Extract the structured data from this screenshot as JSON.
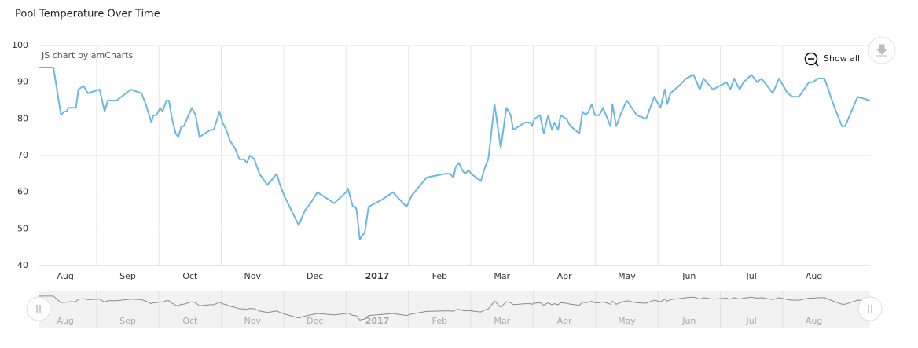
{
  "chart_data": {
    "type": "line",
    "title": "Pool Temperature Over Time",
    "credit": "JS chart by amCharts",
    "zoom_button": "Show all",
    "color": "#6bb9dc",
    "grid": true,
    "ylim": [
      40,
      100
    ],
    "yticks": [
      40,
      50,
      60,
      70,
      80,
      90,
      100
    ],
    "xlim": [
      0.07,
      13.4
    ],
    "xticks": [
      {
        "value": 0,
        "label": "Aug"
      },
      {
        "value": 1,
        "label": "Sep"
      },
      {
        "value": 2,
        "label": "Oct"
      },
      {
        "value": 3,
        "label": "Nov"
      },
      {
        "value": 4,
        "label": "Dec"
      },
      {
        "value": 5,
        "label": "2017"
      },
      {
        "value": 6,
        "label": "Feb"
      },
      {
        "value": 7,
        "label": "Mar"
      },
      {
        "value": 8,
        "label": "Apr"
      },
      {
        "value": 9,
        "label": "May"
      },
      {
        "value": 10,
        "label": "Jun"
      },
      {
        "value": 11,
        "label": "Jul"
      },
      {
        "value": 12,
        "label": "Aug"
      }
    ],
    "x": [
      0.07,
      0.31,
      0.43,
      0.48,
      0.52,
      0.55,
      0.67,
      0.71,
      0.79,
      0.86,
      1.05,
      1.13,
      1.18,
      1.32,
      1.55,
      1.72,
      1.79,
      1.88,
      1.91,
      1.96,
      2.02,
      2.06,
      2.12,
      2.16,
      2.21,
      2.27,
      2.31,
      2.36,
      2.4,
      2.45,
      2.53,
      2.59,
      2.65,
      2.73,
      2.83,
      2.88,
      2.97,
      3.02,
      3.08,
      3.14,
      3.22,
      3.29,
      3.36,
      3.41,
      3.46,
      3.53,
      3.61,
      3.74,
      3.89,
      3.94,
      4.01,
      4.24,
      4.34,
      4.43,
      4.54,
      4.81,
      5.0,
      5.03,
      5.11,
      5.15,
      5.17,
      5.22,
      5.25,
      5.3,
      5.36,
      5.58,
      5.75,
      5.97,
      6.05,
      6.29,
      6.58,
      6.67,
      6.72,
      6.76,
      6.81,
      6.86,
      6.91,
      6.96,
      7.01,
      7.16,
      7.23,
      7.28,
      7.38,
      7.48,
      7.57,
      7.64,
      7.68,
      7.87,
      7.95,
      7.98,
      8.02,
      8.11,
      8.17,
      8.24,
      8.3,
      8.34,
      8.4,
      8.44,
      8.53,
      8.6,
      8.74,
      8.79,
      8.84,
      8.89,
      8.94,
      8.99,
      9.06,
      9.12,
      9.19,
      9.24,
      9.27,
      9.33,
      9.42,
      9.5,
      9.66,
      9.81,
      9.94,
      10.04,
      10.11,
      10.15,
      10.2,
      10.34,
      10.45,
      10.57,
      10.67,
      10.73,
      10.88,
      11.1,
      11.16,
      11.22,
      11.31,
      11.37,
      11.5,
      11.59,
      11.66,
      11.84,
      11.94,
      12.08,
      12.16,
      12.26,
      12.42,
      12.48,
      12.57,
      12.67,
      12.81,
      12.95,
      13.0,
      13.2,
      13.4
    ],
    "values": [
      94,
      94,
      81,
      82,
      82,
      83,
      83,
      88,
      89,
      87,
      88,
      82,
      85,
      85,
      88,
      87,
      84,
      79,
      81,
      81,
      83,
      82,
      85,
      85,
      80,
      76,
      75,
      78,
      78,
      80,
      83,
      81,
      75,
      76,
      77,
      77,
      82,
      79,
      77,
      74,
      72,
      69,
      69,
      68,
      70,
      69,
      65,
      62,
      65,
      62,
      59,
      51,
      55,
      57,
      60,
      57,
      60,
      61,
      56,
      56,
      55,
      47,
      48,
      49,
      56,
      58,
      60,
      56,
      59,
      64,
      65,
      65,
      64,
      67,
      68,
      66,
      65,
      66,
      65,
      63,
      67,
      69,
      84,
      72,
      83,
      81,
      77,
      79,
      79,
      78,
      80,
      81,
      76,
      81,
      77,
      79,
      77,
      81,
      80,
      78,
      76,
      82,
      81,
      82,
      84,
      81,
      81,
      83,
      80,
      78,
      84,
      78,
      82,
      85,
      81,
      80,
      86,
      83,
      88,
      84,
      87,
      89,
      91,
      92,
      88,
      91,
      88,
      90,
      88,
      91,
      88,
      90,
      92,
      90,
      91,
      87,
      91,
      87,
      86,
      86,
      90,
      90,
      91,
      91,
      84,
      78,
      78,
      86,
      85
    ]
  }
}
